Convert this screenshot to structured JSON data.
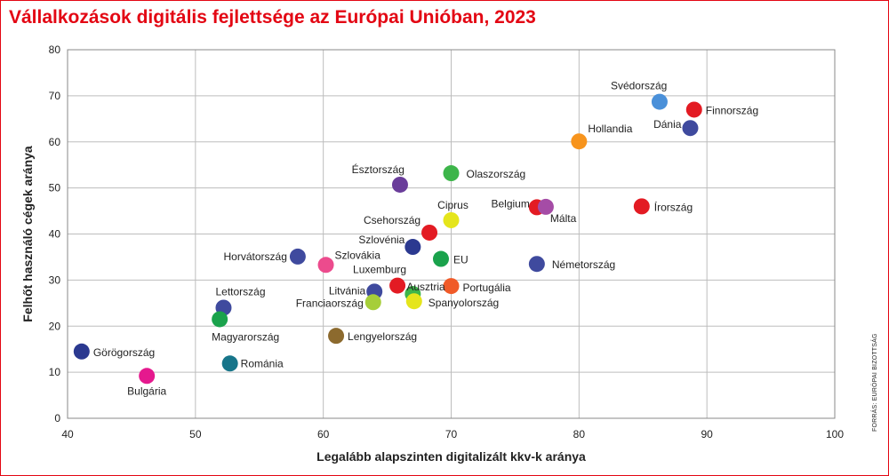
{
  "title": "Vállalkozások digitális fejlettsége az Európai Unióban, 2023",
  "source": "FORRÁS: EURÓPAI BIZOTTSÁG",
  "chart_data": {
    "type": "scatter",
    "xlabel": "Legalább alapszinten digitalizált kkv-k aránya",
    "ylabel": "Felhőt használó cégek aránya",
    "xlim": [
      40,
      100
    ],
    "ylim": [
      0,
      80
    ],
    "xticks": [
      40,
      50,
      60,
      70,
      80,
      90,
      100
    ],
    "yticks": [
      0,
      10,
      20,
      30,
      40,
      50,
      60,
      70,
      80
    ],
    "grid": true,
    "points": [
      {
        "name": "Svédország",
        "x": 86.3,
        "y": 68.7,
        "color": "#4a90d9"
      },
      {
        "name": "Finnország",
        "x": 89.0,
        "y": 67.0,
        "color": "#e31b23"
      },
      {
        "name": "Dánia",
        "x": 88.7,
        "y": 63.0,
        "color": "#3f4a9e"
      },
      {
        "name": "Hollandia",
        "x": 80.0,
        "y": 60.1,
        "color": "#f7941d"
      },
      {
        "name": "Olaszország",
        "x": 70.0,
        "y": 53.2,
        "color": "#3db54a"
      },
      {
        "name": "Észtország",
        "x": 66.0,
        "y": 50.7,
        "color": "#6a3d9a"
      },
      {
        "name": "Belgium",
        "x": 76.7,
        "y": 45.8,
        "color": "#e31b23"
      },
      {
        "name": "Málta",
        "x": 77.4,
        "y": 45.9,
        "color": "#a54ca6"
      },
      {
        "name": "Írország",
        "x": 84.9,
        "y": 46.0,
        "color": "#e31b23"
      },
      {
        "name": "Ciprus",
        "x": 70.0,
        "y": 43.0,
        "color": "#e5e51c"
      },
      {
        "name": "Csehország",
        "x": 68.3,
        "y": 40.3,
        "color": "#e31b23"
      },
      {
        "name": "Szlovénia",
        "x": 67.0,
        "y": 37.2,
        "color": "#2b3990"
      },
      {
        "name": "Horvátország",
        "x": 58.0,
        "y": 35.1,
        "color": "#3f4a9e"
      },
      {
        "name": "Szlovákia",
        "x": 60.2,
        "y": 33.3,
        "color": "#ec4b8d"
      },
      {
        "name": "EU",
        "x": 69.2,
        "y": 34.6,
        "color": "#1aa24c"
      },
      {
        "name": "Németország",
        "x": 76.7,
        "y": 33.5,
        "color": "#3f4a9e"
      },
      {
        "name": "Luxemburg",
        "x": 65.8,
        "y": 28.8,
        "color": "#e31b23"
      },
      {
        "name": "Ausztria",
        "x": 67.0,
        "y": 27.0,
        "color": "#3db54a"
      },
      {
        "name": "Portugália",
        "x": 70.0,
        "y": 28.7,
        "color": "#f05a28"
      },
      {
        "name": "Litvánia",
        "x": 64.0,
        "y": 27.5,
        "color": "#3f4a9e"
      },
      {
        "name": "Franciaország",
        "x": 63.9,
        "y": 25.2,
        "color": "#a6ce39"
      },
      {
        "name": "Spanyolország",
        "x": 67.1,
        "y": 25.4,
        "color": "#e5e51c"
      },
      {
        "name": "Lettország",
        "x": 52.2,
        "y": 24.0,
        "color": "#3f4a9e"
      },
      {
        "name": "Magyarország",
        "x": 51.9,
        "y": 21.5,
        "color": "#1aa24c"
      },
      {
        "name": "Lengyelország",
        "x": 61.0,
        "y": 17.9,
        "color": "#8c6a2e"
      },
      {
        "name": "Görögország",
        "x": 41.1,
        "y": 14.5,
        "color": "#2b3990"
      },
      {
        "name": "Románia",
        "x": 52.7,
        "y": 11.9,
        "color": "#17758a"
      },
      {
        "name": "Bulgária",
        "x": 46.2,
        "y": 9.2,
        "color": "#e5198e"
      }
    ]
  }
}
